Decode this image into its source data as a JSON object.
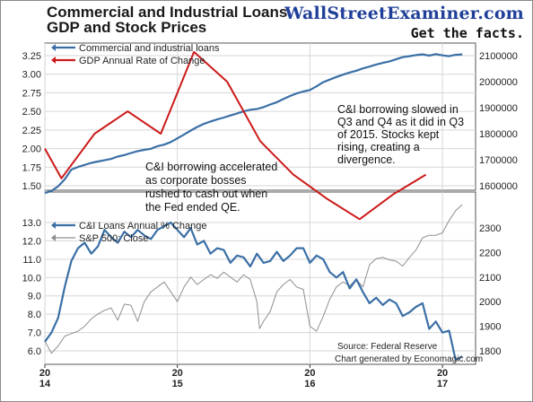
{
  "page": {
    "title_line1": "Commercial and Industrial Loans",
    "title_line2": "GDP and Stock Prices",
    "brand": "WallStreetExaminer.com",
    "tagline": "Get the facts."
  },
  "chart_data": [
    {
      "type": "line",
      "panel": "top",
      "series": [
        {
          "name": "Commercial and industrial loans",
          "axis": "right",
          "color": "#3a6fa6",
          "x": [
            2014.0,
            2014.05,
            2014.1,
            2014.15,
            2014.2,
            2014.25,
            2014.3,
            2014.35,
            2014.4,
            2014.45,
            2014.5,
            2014.55,
            2014.6,
            2014.65,
            2014.7,
            2014.75,
            2014.8,
            2014.85,
            2014.9,
            2014.95,
            2015.0,
            2015.05,
            2015.1,
            2015.15,
            2015.2,
            2015.25,
            2015.3,
            2015.35,
            2015.4,
            2015.45,
            2015.5,
            2015.55,
            2015.6,
            2015.65,
            2015.7,
            2015.75,
            2015.8,
            2015.85,
            2015.9,
            2015.95,
            2016.0,
            2016.05,
            2016.1,
            2016.15,
            2016.2,
            2016.25,
            2016.3,
            2016.35,
            2016.4,
            2016.45,
            2016.5,
            2016.55,
            2016.6,
            2016.65,
            2016.7,
            2016.75,
            2016.8,
            2016.85,
            2016.9,
            2016.95,
            2017.0,
            2017.05,
            2017.1,
            2017.15
          ],
          "values": [
            1572000,
            1580000,
            1598000,
            1625000,
            1662000,
            1672000,
            1680000,
            1688000,
            1693000,
            1698000,
            1703000,
            1712000,
            1718000,
            1726000,
            1733000,
            1738000,
            1742000,
            1752000,
            1758000,
            1768000,
            1782000,
            1797000,
            1812000,
            1826000,
            1838000,
            1847000,
            1855000,
            1862000,
            1870000,
            1878000,
            1886000,
            1892000,
            1895000,
            1902000,
            1912000,
            1921000,
            1933000,
            1945000,
            1955000,
            1962000,
            1968000,
            1982000,
            1998000,
            2008000,
            2018000,
            2027000,
            2035000,
            2042000,
            2051000,
            2058000,
            2066000,
            2072000,
            2078000,
            2086000,
            2094000,
            2098000,
            2102000,
            2105000,
            2100000,
            2106000,
            2101000,
            2098000,
            2103000,
            2105000
          ]
        },
        {
          "name": "GDP Annual Rate of Change",
          "axis": "left",
          "color": "#cc1a1a",
          "x": [
            2014.0,
            2014.125,
            2014.375,
            2014.625,
            2014.875,
            2015.125,
            2015.375,
            2015.625,
            2015.875,
            2016.125,
            2016.375,
            2016.625,
            2016.875
          ],
          "values": [
            2.0,
            1.6,
            2.2,
            2.5,
            2.2,
            3.3,
            2.9,
            2.1,
            1.65,
            1.33,
            1.05,
            1.38,
            1.65
          ]
        }
      ],
      "left_axis": {
        "ylim": [
          1.5,
          3.25
        ],
        "ticks": [
          "1.50",
          "1.75",
          "2.00",
          "2.25",
          "2.50",
          "2.75",
          "3.00",
          "3.25"
        ]
      },
      "right_axis": {
        "ylim": [
          1600000,
          2100000
        ],
        "ticks": [
          "1600000",
          "1700000",
          "1800000",
          "1900000",
          "2000000",
          "2100000"
        ]
      },
      "annotations": [
        [
          "C&I borrowing accelerated",
          "as corporate bosses",
          "rushed to cash out when",
          "the Fed ended QE."
        ],
        [
          "C&I borrowing slowed in",
          "Q3 and Q4 as it did in Q3",
          "of 2015.  Stocks kept",
          "rising, creating a",
          "divergence."
        ]
      ]
    },
    {
      "type": "line",
      "panel": "bottom",
      "series": [
        {
          "name": "C&I Loans Annual % Change",
          "axis": "left",
          "color": "#3a6fa6",
          "x": [
            2014.0,
            2014.05,
            2014.1,
            2014.15,
            2014.2,
            2014.25,
            2014.3,
            2014.35,
            2014.4,
            2014.45,
            2014.5,
            2014.55,
            2014.6,
            2014.65,
            2014.7,
            2014.75,
            2014.8,
            2014.85,
            2014.9,
            2014.95,
            2015.0,
            2015.05,
            2015.1,
            2015.15,
            2015.2,
            2015.25,
            2015.3,
            2015.35,
            2015.4,
            2015.45,
            2015.5,
            2015.55,
            2015.6,
            2015.65,
            2015.7,
            2015.75,
            2015.8,
            2015.85,
            2015.9,
            2015.95,
            2016.0,
            2016.05,
            2016.1,
            2016.15,
            2016.2,
            2016.25,
            2016.3,
            2016.35,
            2016.4,
            2016.45,
            2016.5,
            2016.55,
            2016.6,
            2016.65,
            2016.7,
            2016.75,
            2016.8,
            2016.85,
            2016.9,
            2016.95,
            2017.0,
            2017.05,
            2017.1,
            2017.15
          ],
          "values": [
            6.5,
            7.0,
            7.8,
            9.5,
            10.9,
            11.6,
            11.9,
            11.3,
            11.7,
            12.6,
            12.2,
            11.9,
            12.5,
            12.2,
            12.6,
            12.3,
            12.1,
            12.6,
            12.8,
            13.0,
            12.6,
            12.2,
            12.7,
            11.8,
            12.0,
            11.3,
            11.6,
            11.5,
            10.8,
            11.2,
            11.1,
            10.6,
            11.3,
            10.8,
            10.9,
            11.4,
            10.9,
            11.2,
            11.6,
            11.6,
            10.8,
            11.2,
            11.0,
            10.3,
            10.0,
            10.3,
            9.4,
            9.9,
            9.2,
            8.6,
            8.9,
            8.5,
            8.8,
            8.6,
            7.9,
            8.1,
            8.4,
            8.6,
            7.2,
            7.6,
            7.0,
            7.1,
            5.5,
            5.7
          ]
        },
        {
          "name": "S&P 500: Close",
          "axis": "right",
          "color": "#8f8f8f",
          "x": [
            2014.0,
            2014.05,
            2014.1,
            2014.15,
            2014.2,
            2014.25,
            2014.3,
            2014.35,
            2014.4,
            2014.45,
            2014.5,
            2014.55,
            2014.6,
            2014.65,
            2014.7,
            2014.75,
            2014.8,
            2014.85,
            2014.9,
            2014.95,
            2015.0,
            2015.05,
            2015.1,
            2015.15,
            2015.2,
            2015.25,
            2015.3,
            2015.35,
            2015.4,
            2015.45,
            2015.5,
            2015.55,
            2015.6,
            2015.62,
            2015.65,
            2015.7,
            2015.75,
            2015.8,
            2015.85,
            2015.9,
            2015.95,
            2016.0,
            2016.05,
            2016.1,
            2016.15,
            2016.2,
            2016.25,
            2016.3,
            2016.35,
            2016.4,
            2016.45,
            2016.5,
            2016.55,
            2016.6,
            2016.65,
            2016.7,
            2016.75,
            2016.8,
            2016.85,
            2016.9,
            2016.95,
            2017.0,
            2017.05,
            2017.1,
            2017.15
          ],
          "values": [
            1840,
            1790,
            1820,
            1860,
            1870,
            1880,
            1900,
            1930,
            1950,
            1965,
            1975,
            1925,
            1990,
            1985,
            1920,
            2000,
            2040,
            2060,
            2080,
            2040,
            2000,
            2060,
            2100,
            2070,
            2090,
            2110,
            2095,
            2120,
            2100,
            2080,
            2110,
            2090,
            2000,
            1890,
            1920,
            1960,
            2040,
            2070,
            2090,
            2060,
            2050,
            1900,
            1880,
            1940,
            2010,
            2060,
            2080,
            2065,
            2090,
            2060,
            2150,
            2175,
            2180,
            2170,
            2165,
            2145,
            2180,
            2210,
            2260,
            2270,
            2270,
            2280,
            2330,
            2370,
            2395
          ]
        }
      ],
      "left_axis": {
        "ylim": [
          5.5,
          13.5
        ],
        "ticks": [
          "6.0",
          "7.0",
          "8.0",
          "9.0",
          "10.0",
          "11.0",
          "12.0",
          "13.0"
        ]
      },
      "right_axis": {
        "ylim": [
          1750,
          2400
        ],
        "ticks": [
          "1800",
          "1900",
          "2000",
          "2100",
          "2200",
          "2300"
        ]
      },
      "x_axis": {
        "range": [
          2014,
          2017.25
        ],
        "ticks": [
          {
            "top": "20",
            "bottom": "14"
          },
          {
            "top": "20",
            "bottom": "15"
          },
          {
            "top": "20",
            "bottom": "16"
          },
          {
            "top": "20",
            "bottom": "17"
          }
        ]
      },
      "source": "Source: Federal Reserve",
      "credit": "Chart generated by Economagic.com"
    }
  ]
}
